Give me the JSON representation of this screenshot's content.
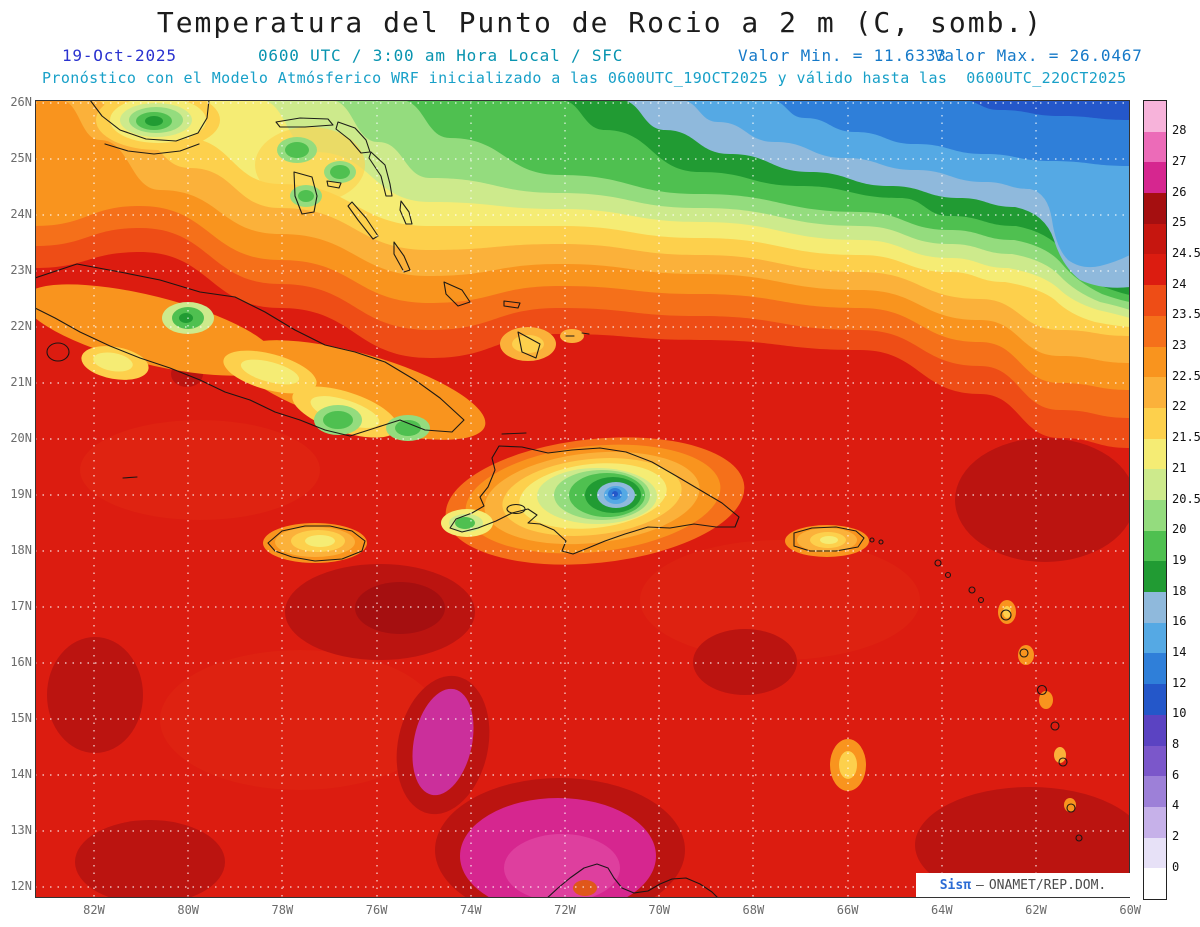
{
  "title": "Temperatura del Punto de Rocio a 2 m (C, somb.)",
  "header": {
    "date": "19-Oct-2025",
    "time_info": "0600 UTC / 3:00 am Hora Local / SFC",
    "valor_min": "Valor Min. = 11.6333",
    "valor_max": "Valor Max. = 26.0467",
    "forecast_line": "Pronóstico con el Modelo Atmósferico WRF inicializado a las 0600UTC_19OCT2025 y válido hasta las  0600UTC_22OCT2025"
  },
  "watermark": {
    "brand": "Sisπ",
    "separator": "—",
    "org": "ONAMET/REP.DOM."
  },
  "colors": {
    "header_date_blue": "#2a32cf",
    "header_teal": "#0894b0",
    "header_valor_blue": "#1579c8",
    "forecast_line_cyan": "#18a0c8",
    "axis_label_gray": "#6b6b6b",
    "base_field_red": "#dc1c10"
  },
  "chart_data": {
    "type": "heatmap",
    "title": "Temperatura del Punto de Rocio a 2 m (C, somb.)",
    "units": "C",
    "model": "WRF",
    "init_time": "0600UTC_19OCT2025",
    "valid_until": "0600UTC_22OCT2025",
    "min_value": 11.6333,
    "max_value": 26.0467,
    "x_axis": {
      "ticks": [
        "82W",
        "80W",
        "78W",
        "76W",
        "74W",
        "72W",
        "70W",
        "68W",
        "66W",
        "64W",
        "62W",
        "60W"
      ],
      "order": "left-to-right"
    },
    "y_axis": {
      "ticks": [
        "26N",
        "25N",
        "24N",
        "23N",
        "22N",
        "21N",
        "20N",
        "19N",
        "18N",
        "17N",
        "16N",
        "15N",
        "14N",
        "13N",
        "12N"
      ],
      "order": "top-to-bottom"
    },
    "colorbar": {
      "levels_bottom_to_top": [
        "0",
        "2",
        "4",
        "6",
        "8",
        "10",
        "12",
        "14",
        "16",
        "18",
        "19",
        "20",
        "20.5",
        "21",
        "21.5",
        "22",
        "22.5",
        "23",
        "23.5",
        "24",
        "24.5",
        "25",
        "26",
        "27",
        "28"
      ],
      "colors_bottom_to_top": [
        "#ffffff",
        "#e7e1f7",
        "#c6b1e9",
        "#9d80d8",
        "#7b57ca",
        "#5b43c2",
        "#2457c9",
        "#2f7fd9",
        "#55a9e4",
        "#8fb9dc",
        "#219b33",
        "#4fc050",
        "#94dc7e",
        "#cdea8c",
        "#f5ec74",
        "#fdd04c",
        "#fbb13a",
        "#f9941e",
        "#f5701a",
        "#ee4d16",
        "#dc1c10",
        "#c6160f",
        "#a50f10",
        "#d6268f",
        "#ec6bb8",
        "#f7b3da"
      ],
      "position": "right"
    },
    "grid": "dotted-white",
    "legend_position": "right"
  }
}
